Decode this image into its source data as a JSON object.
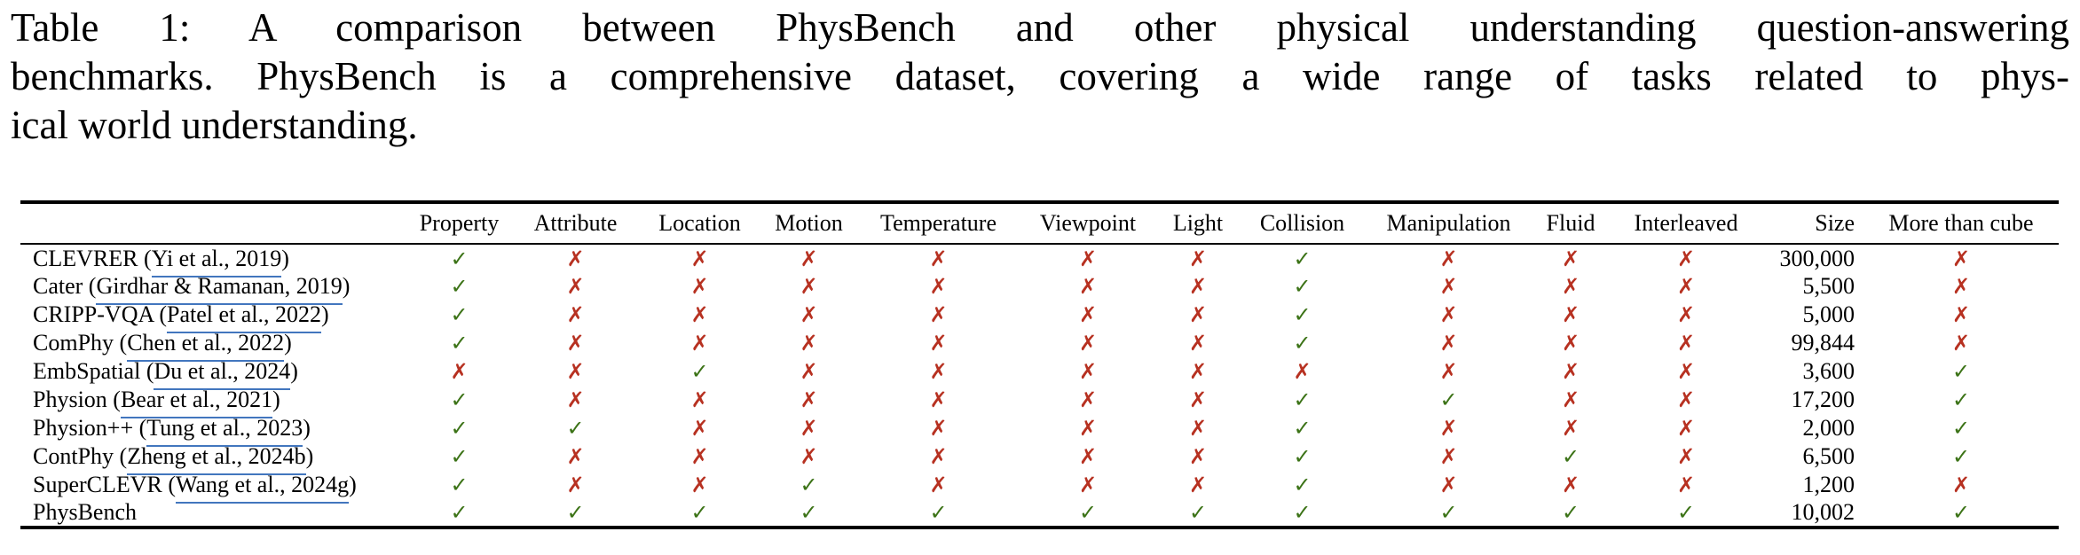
{
  "caption": {
    "lines": [
      "Table 1: A comparison between PhysBench and other physical understanding question-answering",
      "benchmarks. PhysBench is a comprehensive dataset, covering a wide range of tasks related to phys-",
      "ical world understanding."
    ]
  },
  "glyphs": {
    "check": "✓",
    "cross": "✗"
  },
  "colors": {
    "check_green": "#3C7317",
    "cross_red": "#B73121",
    "link_blue": "#4276BE"
  },
  "chart_data": {
    "type": "table",
    "title": "Comparison of physical understanding QA benchmarks",
    "mark_columns": [
      "Property",
      "Attribute",
      "Location",
      "Motion",
      "Temperature",
      "Viewpoint",
      "Light",
      "Collision",
      "Manipulation",
      "Fluid",
      "Interleaved"
    ],
    "extra_columns": [
      "Size",
      "More than cube"
    ]
  },
  "table": {
    "columns": [
      {
        "label": "Property"
      },
      {
        "label": "Attribute"
      },
      {
        "label": "Location"
      },
      {
        "label": "Motion"
      },
      {
        "label": "Temperature"
      },
      {
        "label": "Viewpoint"
      },
      {
        "label": "Light"
      },
      {
        "label": "Collision"
      },
      {
        "label": "Manipulation"
      },
      {
        "label": "Fluid"
      },
      {
        "label": "Interleaved"
      },
      {
        "label": "Size"
      },
      {
        "label": "More than cube"
      }
    ],
    "rows": [
      {
        "prefix": "CLEVRER (",
        "link": "Yi et al., 2019",
        "suffix": ")",
        "marks": [
          true,
          false,
          false,
          false,
          false,
          false,
          false,
          true,
          false,
          false,
          false
        ],
        "size": "300,000",
        "more_than_cube": false
      },
      {
        "prefix": "Cater (",
        "link": "Girdhar & Ramanan, 2019",
        "suffix": ")",
        "marks": [
          true,
          false,
          false,
          false,
          false,
          false,
          false,
          true,
          false,
          false,
          false
        ],
        "size": "5,500",
        "more_than_cube": false
      },
      {
        "prefix": "CRIPP-VQA (",
        "link": "Patel et al., 2022",
        "suffix": ")",
        "marks": [
          true,
          false,
          false,
          false,
          false,
          false,
          false,
          true,
          false,
          false,
          false
        ],
        "size": "5,000",
        "more_than_cube": false
      },
      {
        "prefix": "ComPhy (",
        "link": "Chen et al., 2022",
        "suffix": ")",
        "marks": [
          true,
          false,
          false,
          false,
          false,
          false,
          false,
          true,
          false,
          false,
          false
        ],
        "size": "99,844",
        "more_than_cube": false
      },
      {
        "prefix": "EmbSpatial (",
        "link": "Du et al., 2024",
        "suffix": ")",
        "marks": [
          false,
          false,
          true,
          false,
          false,
          false,
          false,
          false,
          false,
          false,
          false
        ],
        "size": "3,600",
        "more_than_cube": true
      },
      {
        "prefix": "Physion (",
        "link": "Bear et al., 2021",
        "suffix": ")",
        "marks": [
          true,
          false,
          false,
          false,
          false,
          false,
          false,
          true,
          true,
          false,
          false
        ],
        "size": "17,200",
        "more_than_cube": true
      },
      {
        "prefix": "Physion++ (",
        "link": "Tung et al., 2023",
        "suffix": ")",
        "marks": [
          true,
          true,
          false,
          false,
          false,
          false,
          false,
          true,
          false,
          false,
          false
        ],
        "size": "2,000",
        "more_than_cube": true
      },
      {
        "prefix": "ContPhy (",
        "link": "Zheng et al., 2024b",
        "suffix": ")",
        "marks": [
          true,
          false,
          false,
          false,
          false,
          false,
          false,
          true,
          false,
          true,
          false
        ],
        "size": "6,500",
        "more_than_cube": true
      },
      {
        "prefix": "SuperCLEVR (",
        "link": "Wang et al., 2024g",
        "suffix": ")",
        "marks": [
          true,
          false,
          false,
          true,
          false,
          false,
          false,
          true,
          false,
          false,
          false
        ],
        "size": "1,200",
        "more_than_cube": false
      },
      {
        "prefix": "PhysBench",
        "link": "",
        "suffix": "",
        "marks": [
          true,
          true,
          true,
          true,
          true,
          true,
          true,
          true,
          true,
          true,
          true
        ],
        "size": "10,002",
        "more_than_cube": true
      }
    ]
  }
}
